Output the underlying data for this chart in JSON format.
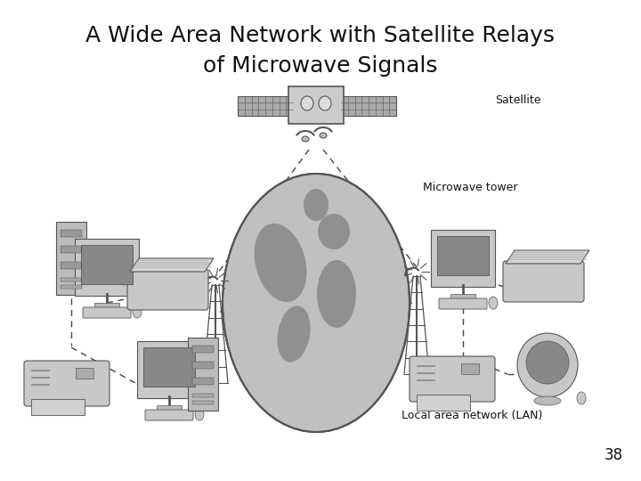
{
  "title_line1": "A Wide Area Network with Satellite Relays",
  "title_line2": "of Microwave Signals",
  "page_number": "38",
  "bg_color": "#ffffff",
  "title_fontsize": 18,
  "label_fontsize": 9,
  "page_num_fontsize": 12,
  "label_satellite": "Satellite",
  "label_microwave": "Microwave tower",
  "label_lan": "Local area network (LAN)",
  "dash_color": "#555555",
  "line_color": "#333333",
  "device_color": "#bbbbbb",
  "dark_color": "#555555",
  "globe_color": "#c0c0c0",
  "continent_color": "#909090"
}
